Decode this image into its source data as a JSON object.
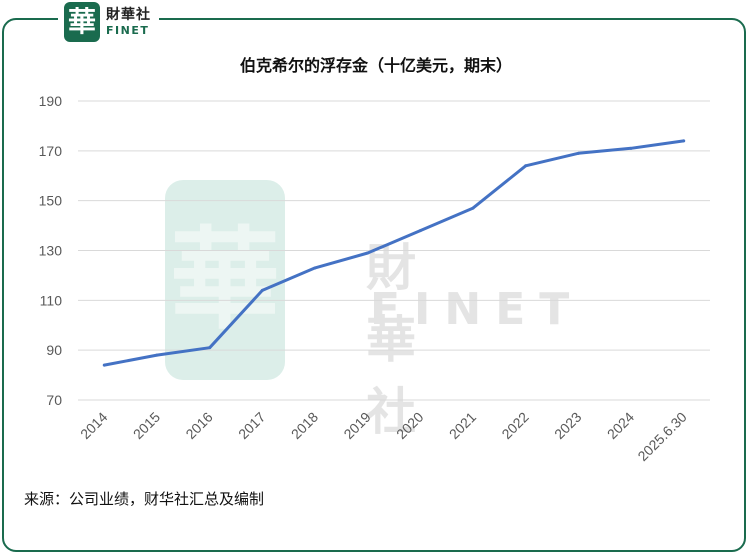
{
  "logo": {
    "seal_char": "華",
    "cn": "財華社",
    "en": "FINET"
  },
  "watermark": {
    "seal_char": "華",
    "cn": "財華社",
    "en": "FINET"
  },
  "chart_data": {
    "type": "line",
    "title": "伯克希尔的浮存金（十亿美元，期末）",
    "categories": [
      "2014",
      "2015",
      "2016",
      "2017",
      "2018",
      "2019",
      "2020",
      "2021",
      "2022",
      "2023",
      "2024",
      "2025.6.30"
    ],
    "series": [
      {
        "values": [
          84,
          88,
          91,
          114,
          123,
          129,
          138,
          147,
          164,
          169,
          171,
          174
        ]
      }
    ],
    "yticks": [
      70,
      90,
      110,
      130,
      150,
      170,
      190
    ],
    "ylim": [
      70,
      190
    ],
    "grid": true,
    "line_color": "#4472c4",
    "xlabel": "",
    "ylabel": ""
  },
  "source": "来源：公司业绩，财华社汇总及编制",
  "colors": {
    "frame": "#1a6b4e",
    "grid": "#d9d9d9",
    "tick_text": "#595959"
  }
}
